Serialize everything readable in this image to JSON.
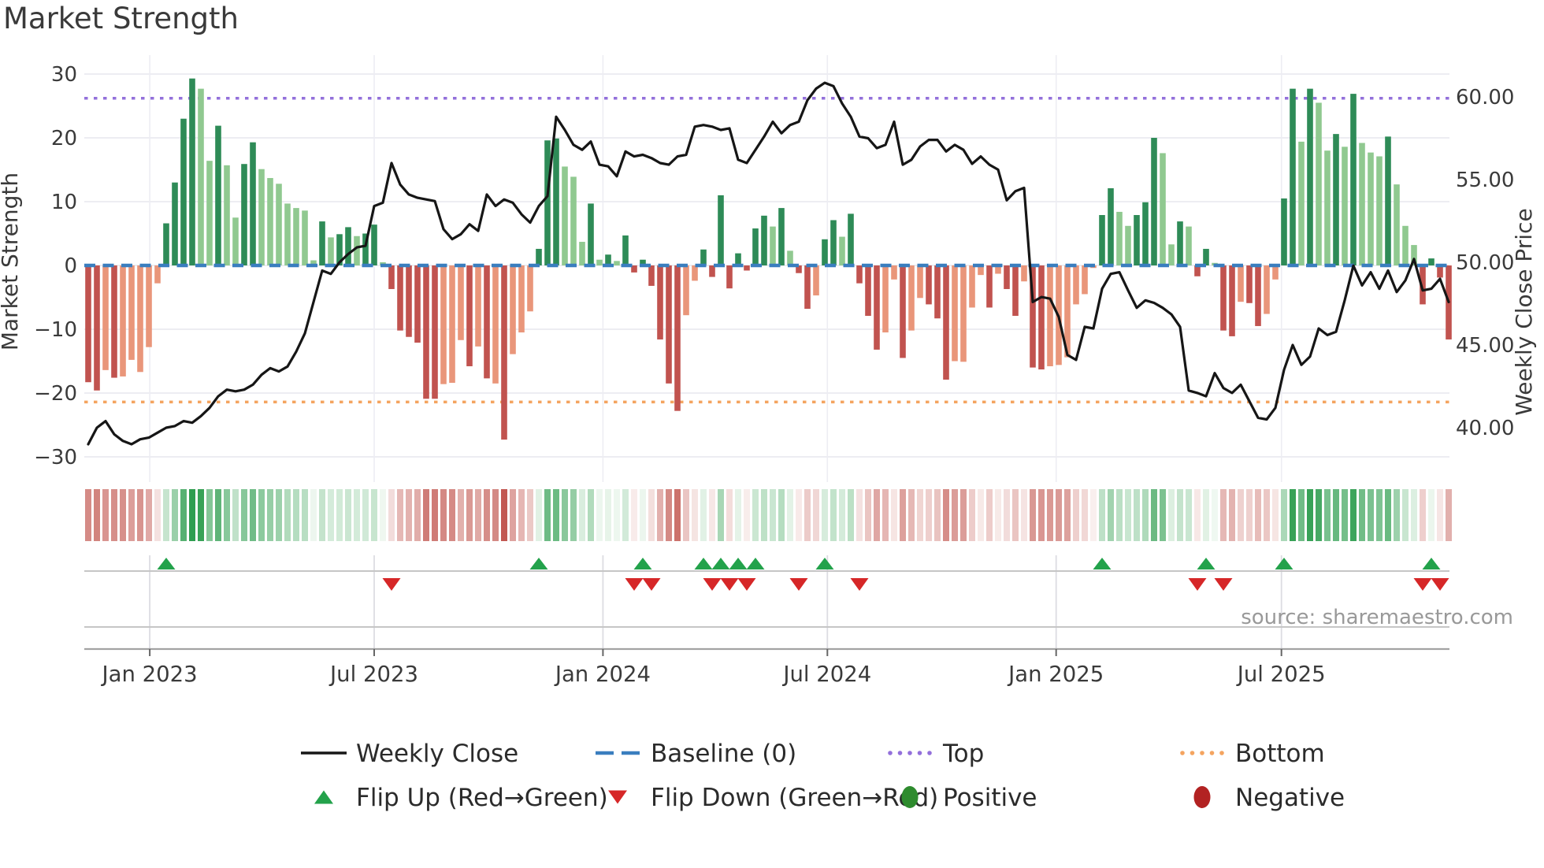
{
  "title": "Market Strength",
  "source_credit": "source: sharemaestro.com",
  "left_axis": {
    "title": "Market Strength",
    "ticks": [
      30,
      20,
      10,
      0,
      -10,
      -20,
      -30
    ]
  },
  "right_axis": {
    "title": "Weekly Close Price",
    "ticks": [
      "60.00",
      "55.00",
      "50.00",
      "45.00",
      "40.00"
    ],
    "tick_values": [
      60,
      55,
      50,
      45,
      40
    ]
  },
  "x_axis": {
    "ticks": [
      {
        "label": "Jan 2023",
        "week": 7.1
      },
      {
        "label": "Jul 2023",
        "week": 33.0
      },
      {
        "label": "Jan 2024",
        "week": 59.4
      },
      {
        "label": "Jul 2024",
        "week": 85.3
      },
      {
        "label": "Jan 2025",
        "week": 111.7
      },
      {
        "label": "Jul 2025",
        "week": 137.7
      }
    ]
  },
  "chart_data": {
    "type": "bar-line-heatmap-combo",
    "weeks": 158,
    "baseline": 0,
    "top_threshold": 26.2,
    "bottom_threshold": -21.4,
    "strength_ylim": [
      -30,
      30
    ],
    "price_axis_labels": [
      60,
      55,
      50,
      45,
      40
    ],
    "bar_series_name": "Market Strength",
    "line_series_name": "Weekly Close",
    "bar_values": [
      -18.3,
      -19.6,
      -16.4,
      -17.6,
      -17.4,
      -14.8,
      -16.7,
      -12.8,
      -2.8,
      6.6,
      13,
      23,
      29.3,
      27.7,
      16.4,
      21.9,
      15.7,
      7.5,
      15.9,
      19.3,
      15.1,
      13.7,
      12.8,
      9.7,
      9,
      8.6,
      0.8,
      6.9,
      4.4,
      4.9,
      6,
      4.6,
      5,
      6.4,
      0.5,
      -3.7,
      -10.2,
      -11.2,
      -12.1,
      -20.9,
      -20.9,
      -18.6,
      -18.4,
      -11.7,
      -15.8,
      -12.7,
      -17.7,
      -18.5,
      -27.3,
      -13.9,
      -10.5,
      -7.2,
      2.6,
      19.6,
      19.9,
      15.5,
      13.9,
      3.7,
      9.7,
      0.9,
      1.7,
      0.7,
      4.7,
      -1.1,
      0.9,
      -3.2,
      -11.6,
      -18.5,
      -22.8,
      -7.8,
      -2.4,
      2.5,
      -1.8,
      11,
      -3.6,
      1.9,
      -0.8,
      5.8,
      7.8,
      6.1,
      9,
      2.3,
      -1.2,
      -6.8,
      -4.7,
      4.1,
      7.1,
      4.5,
      8.1,
      -2.8,
      -7.9,
      -13.2,
      -10.5,
      -2.2,
      -14.5,
      -10.2,
      -5.1,
      -6.1,
      -8.3,
      -17.9,
      -15,
      -15.1,
      -6.6,
      -1.5,
      -6.6,
      -1.3,
      -3.7,
      -7.9,
      -2.5,
      -16,
      -16.3,
      -15.8,
      -15.6,
      -14.4,
      -6.1,
      -4.5,
      -0.4,
      7.9,
      12.1,
      8.4,
      6.2,
      7.9,
      9.9,
      20,
      17.6,
      3.3,
      6.9,
      6.1,
      -1.7,
      2.6,
      0.4,
      -10.2,
      -11.1,
      -5.7,
      -5.9,
      -9.5,
      -7.6,
      -2.2,
      10.5,
      27.7,
      19.4,
      27.7,
      25.5,
      18,
      20.6,
      18.6,
      26.9,
      19.2,
      17.7,
      17.1,
      20.2,
      12.7,
      6.2,
      3.2,
      -6.1,
      1.1,
      -1.9,
      -11.6
    ],
    "bar_shade_dark": [
      1,
      1,
      0,
      1,
      0,
      0,
      0,
      0,
      0,
      1,
      1,
      1,
      1,
      0,
      0,
      1,
      0,
      0,
      1,
      1,
      0,
      0,
      0,
      0,
      0,
      0,
      0,
      1,
      0,
      1,
      1,
      0,
      1,
      1,
      0,
      1,
      1,
      1,
      1,
      1,
      1,
      0,
      0,
      0,
      1,
      0,
      1,
      0,
      1,
      0,
      0,
      0,
      1,
      1,
      1,
      0,
      0,
      0,
      1,
      0,
      1,
      0,
      1,
      1,
      1,
      1,
      1,
      1,
      1,
      0,
      0,
      1,
      1,
      1,
      1,
      1,
      1,
      1,
      1,
      0,
      1,
      0,
      1,
      1,
      0,
      1,
      1,
      0,
      1,
      1,
      1,
      1,
      0,
      0,
      1,
      0,
      0,
      1,
      1,
      1,
      0,
      0,
      0,
      0,
      1,
      0,
      1,
      1,
      0,
      1,
      1,
      0,
      0,
      0,
      0,
      0,
      0,
      1,
      1,
      0,
      0,
      1,
      1,
      1,
      0,
      0,
      1,
      0,
      1,
      1,
      0,
      1,
      1,
      0,
      1,
      1,
      0,
      0,
      1,
      1,
      0,
      1,
      0,
      0,
      1,
      0,
      1,
      0,
      0,
      0,
      1,
      0,
      0,
      0,
      1,
      1,
      1,
      1
    ],
    "line_prices": [
      39,
      40,
      40.4,
      39.6,
      39.2,
      39,
      39.3,
      39.4,
      39.7,
      40,
      40.1,
      40.4,
      40.3,
      40.7,
      41.2,
      41.9,
      42.3,
      42.2,
      42.3,
      42.6,
      43.2,
      43.6,
      43.4,
      43.7,
      44.6,
      45.7,
      47.6,
      49.5,
      49.3,
      50,
      50.5,
      50.9,
      51,
      53.4,
      53.6,
      56,
      54.7,
      54.1,
      53.9,
      53.8,
      53.7,
      52,
      51.4,
      51.7,
      52.3,
      51.9,
      54.1,
      53.4,
      53.8,
      53.6,
      52.9,
      52.4,
      53.4,
      54,
      58.8,
      58,
      57.1,
      56.8,
      57.3,
      55.9,
      55.8,
      55.2,
      56.7,
      56.4,
      56.5,
      56.3,
      56,
      55.9,
      56.4,
      56.5,
      58.2,
      58.3,
      58.2,
      58,
      58.1,
      56.2,
      56,
      56.8,
      57.6,
      58.5,
      57.8,
      58.3,
      58.5,
      59.8,
      60.5,
      60.85,
      60.65,
      59.6,
      58.8,
      57.6,
      57.5,
      56.9,
      57.1,
      58.5,
      55.9,
      56.2,
      57,
      57.4,
      57.4,
      56.7,
      57.1,
      56.8,
      55.95,
      56.4,
      55.9,
      55.6,
      53.75,
      54.3,
      54.5,
      47.6,
      47.9,
      47.8,
      46.7,
      44.4,
      44.1,
      46.1,
      46,
      48.4,
      49.3,
      49.4,
      48.3,
      47.25,
      47.7,
      47.55,
      47.25,
      46.85,
      46.1,
      42.25,
      42.1,
      41.9,
      43.3,
      42.4,
      42.1,
      42.6,
      41.6,
      40.6,
      40.5,
      41.2,
      43.5,
      45,
      43.8,
      44.3,
      46,
      45.6,
      45.8,
      47.7,
      49.8,
      48.6,
      49.4,
      48.4,
      49.5,
      48.2,
      48.9,
      50.2,
      48.3,
      48.4,
      49,
      47.6
    ],
    "flip_up_weeks": [
      9,
      52,
      64,
      71,
      73,
      75,
      77,
      85,
      117,
      129,
      138,
      155
    ],
    "flip_down_weeks": [
      35,
      63,
      65,
      72,
      74,
      76,
      82,
      89,
      128,
      131,
      154,
      156
    ]
  },
  "legend": {
    "rows": [
      [
        {
          "id": "weekly-close",
          "label": "Weekly Close",
          "marker": "line"
        },
        {
          "id": "baseline",
          "label": "Baseline (0)",
          "marker": "dashes"
        },
        {
          "id": "top",
          "label": "Top",
          "marker": "dots-purple"
        },
        {
          "id": "bottom",
          "label": "Bottom",
          "marker": "dots-orange"
        }
      ],
      [
        {
          "id": "flip-up",
          "label": "Flip Up (Red→Green)",
          "marker": "triangle-up"
        },
        {
          "id": "flip-down",
          "label": "Flip Down (Green→Red)",
          "marker": "triangle-down"
        },
        {
          "id": "positive",
          "label": "Positive",
          "marker": "dot-green"
        },
        {
          "id": "negative",
          "label": "Negative",
          "marker": "dot-darkred"
        }
      ]
    ]
  },
  "colors": {
    "bar_dark_green": "#2e8b57",
    "bar_light_green": "#90c990",
    "bar_dark_red": "#c1534f",
    "bar_light_red": "#e9967a",
    "line": "#161616",
    "baseline": "#3a7ebf",
    "top": "#9370db",
    "bottom": "#f4a460",
    "flip_up": "#23a24b",
    "flip_down": "#d62728",
    "positive_dot": "#2e8b2e",
    "negative_dot": "#b22222",
    "heat_green": "#2f9e50",
    "heat_red": "#bf4f48",
    "grid": "#e7e7ed",
    "panel_line": "#c6c6c6",
    "axis_line": "#a3a3a3",
    "tick_text": "#3a3a3a",
    "legend_text": "#2b2b2b",
    "source_text": "#999999"
  }
}
